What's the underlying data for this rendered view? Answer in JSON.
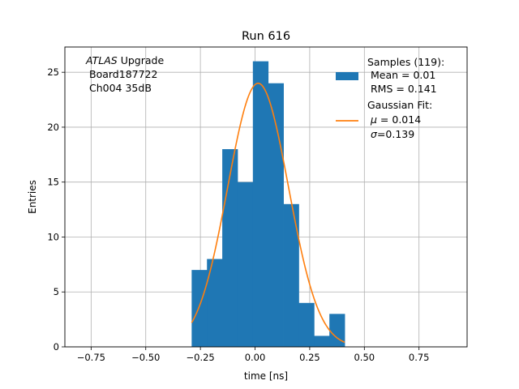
{
  "chart_data": {
    "type": "bar",
    "title": "Run 616",
    "xlabel": "time [ns]",
    "ylabel": "Entries",
    "xlim": [
      -0.87,
      0.97
    ],
    "ylim": [
      0,
      27.3
    ],
    "grid": true,
    "legend_position": "top-right",
    "xticks": [
      -0.75,
      -0.5,
      -0.25,
      0.0,
      0.25,
      0.5,
      0.75
    ],
    "xtick_labels": [
      "−0.75",
      "−0.50",
      "−0.25",
      "0.00",
      "0.25",
      "0.50",
      "0.75"
    ],
    "yticks": [
      0,
      5,
      10,
      15,
      20,
      25
    ],
    "ytick_labels": [
      "0",
      "5",
      "10",
      "15",
      "20",
      "25"
    ],
    "annotation": {
      "line1_italic": "ATLAS",
      "line1_rest": " Upgrade",
      "line2": "Board187722",
      "line3": "Ch004 35dB"
    },
    "histogram": {
      "name": "Samples (119):",
      "color": "#1f77b4",
      "bin_edges": [
        -0.29,
        -0.22,
        -0.15,
        -0.08,
        -0.01,
        0.06,
        0.13,
        0.2,
        0.27,
        0.34,
        0.41
      ],
      "counts": [
        7,
        8,
        18,
        15,
        26,
        24,
        13,
        4,
        1,
        3
      ],
      "mean_label": "Mean = 0.01",
      "rms_label": "RMS = 0.141"
    },
    "fit": {
      "name": "Gaussian Fit:",
      "color": "#ff7f0e",
      "mu": 0.014,
      "sigma": 0.139,
      "amplitude": 24.0,
      "x_range": [
        -0.29,
        0.41
      ],
      "mu_label_prefix": "μ",
      "mu_label_value": " = 0.014",
      "sigma_label_prefix": "σ",
      "sigma_label_value": "=0.139"
    }
  }
}
